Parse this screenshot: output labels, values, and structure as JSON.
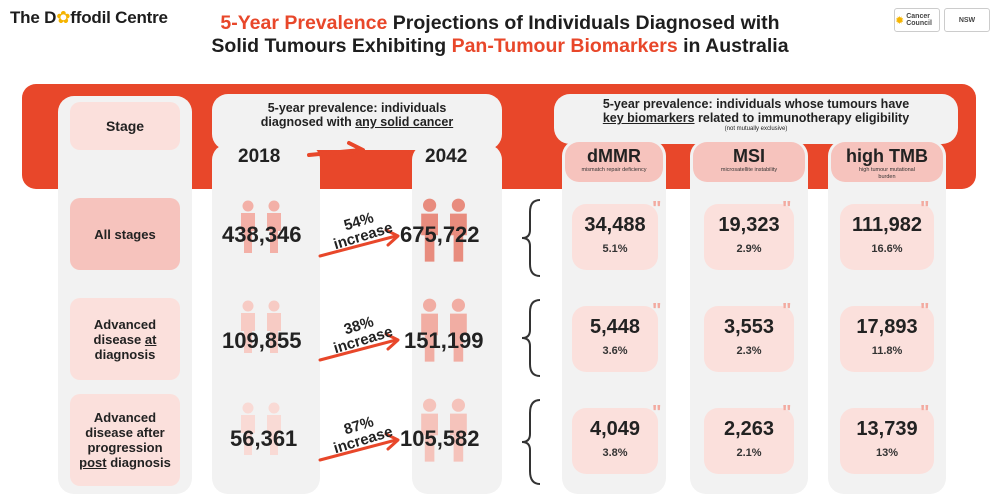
{
  "brand": {
    "logo_pre": "The D",
    "logo_mark": "✿",
    "logo_post": "ffodil Centre"
  },
  "title": {
    "highlight1": "5-Year Prevalence",
    "part1": " Projections of Individuals Diagnosed with",
    "part2a": "Solid Tumours Exhibiting ",
    "highlight2": "Pan-Tumour Biomarkers",
    "part2b": " in Australia"
  },
  "partners": [
    {
      "name": "Cancer Council"
    },
    {
      "name": "NSW"
    }
  ],
  "colors": {
    "accent": "#e8472a",
    "pill": "#f6c3bd",
    "pale": "#fbe0dc",
    "column": "#f2f2f2"
  },
  "stage_header": "Stage",
  "prevalence_header": {
    "line1": "5-year prevalence: individuals",
    "line2_pre": "diagnosed with ",
    "line2_u": "any solid cancer"
  },
  "year_start": "2018",
  "year_end": "2042",
  "biomarker_header": {
    "line1": "5-year prevalence: individuals whose tumours have",
    "line2_u": "key biomarkers",
    "line2_post": " related to immunotherapy eligibility",
    "note": "(not mutually exclusive)"
  },
  "biomarkers": [
    {
      "label": "dMMR",
      "sub": "mismatch repair deficiency"
    },
    {
      "label": "MSI",
      "sub": "microsatellite instability"
    },
    {
      "label": "high TMB",
      "sub": "high tumour mutational burden"
    }
  ],
  "increase_word": "increase",
  "rows": [
    {
      "stage": "All stages",
      "v2018": "438,346",
      "increase": "54%",
      "v2042": "675,722",
      "markers": [
        {
          "value": "34,488",
          "pct": "5.1%"
        },
        {
          "value": "19,323",
          "pct": "2.9%"
        },
        {
          "value": "111,982",
          "pct": "16.6%"
        }
      ]
    },
    {
      "stage_lines": [
        "Advanced",
        "disease ",
        "diagnosis"
      ],
      "stage_u": "at",
      "v2018": "109,855",
      "increase": "38%",
      "v2042": "151,199",
      "markers": [
        {
          "value": "5,448",
          "pct": "3.6%"
        },
        {
          "value": "3,553",
          "pct": "2.3%"
        },
        {
          "value": "17,893",
          "pct": "11.8%"
        }
      ]
    },
    {
      "stage_lines": [
        "Advanced",
        "disease after",
        "progression",
        " diagnosis"
      ],
      "stage_u": "post",
      "v2018": "56,361",
      "increase": "87%",
      "v2042": "105,582",
      "markers": [
        {
          "value": "4,049",
          "pct": "3.8%"
        },
        {
          "value": "2,263",
          "pct": "2.1%"
        },
        {
          "value": "13,739",
          "pct": "13%"
        }
      ]
    }
  ]
}
